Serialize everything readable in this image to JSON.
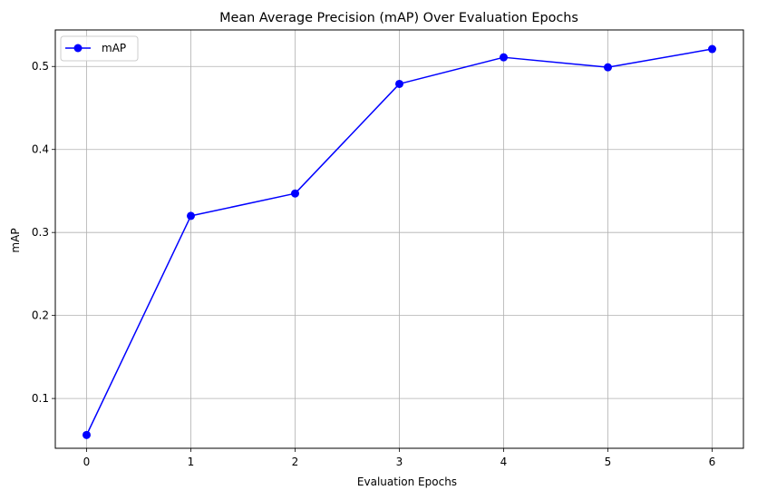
{
  "chart_data": {
    "type": "line",
    "title": "Mean Average Precision (mAP) Over Evaluation Epochs",
    "xlabel": "Evaluation Epochs",
    "ylabel": "mAP",
    "x": [
      0,
      1,
      2,
      3,
      4,
      5,
      6
    ],
    "xticks": [
      "0",
      "1",
      "2",
      "3",
      "4",
      "5",
      "6"
    ],
    "yticks": [
      "0.1",
      "0.2",
      "0.3",
      "0.4",
      "0.5"
    ],
    "ytick_values": [
      0.1,
      0.2,
      0.3,
      0.4,
      0.5
    ],
    "xlim": [
      -0.3,
      6.3
    ],
    "ylim": [
      0.04,
      0.544
    ],
    "grid": true,
    "legend_position": "upper-left",
    "series": [
      {
        "name": "mAP",
        "color": "#0000ff",
        "marker": "circle",
        "values": [
          0.056,
          0.32,
          0.347,
          0.479,
          0.511,
          0.499,
          0.521
        ]
      }
    ]
  }
}
